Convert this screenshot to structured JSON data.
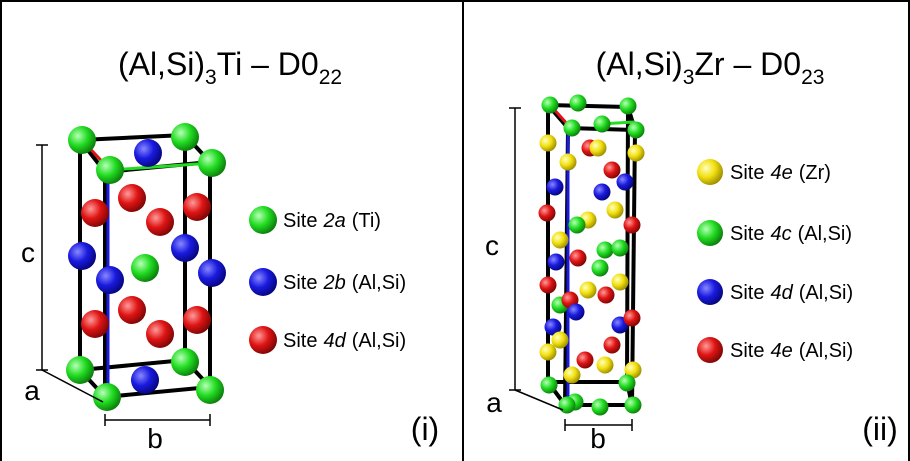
{
  "panels": [
    {
      "title": {
        "formula": "(Al,Si)",
        "formula_sub": "3",
        "element": "Ti – D0",
        "structure_sub": "22"
      },
      "axes": {
        "c": "c",
        "a": "a",
        "b": "b"
      },
      "legend": [
        {
          "site": "Site",
          "wyckoff": "2a",
          "occupant": "(Ti)",
          "color": "#22dd22"
        },
        {
          "site": "Site",
          "wyckoff": "2b",
          "occupant": "(Al,Si)",
          "color": "#1a1ae0"
        },
        {
          "site": "Site",
          "wyckoff": "4d",
          "occupant": "(Al,Si)",
          "color": "#e01414"
        }
      ],
      "label": "(i)"
    },
    {
      "title": {
        "formula": "(Al,Si)",
        "formula_sub": "3",
        "element": "Zr – D0",
        "structure_sub": "23"
      },
      "axes": {
        "c": "c",
        "a": "a",
        "b": "b"
      },
      "legend": [
        {
          "site": "Site",
          "wyckoff": "4e",
          "occupant": "(Zr)",
          "color": "#f2e010"
        },
        {
          "site": "Site",
          "wyckoff": "4c",
          "occupant": "(Al,Si)",
          "color": "#22dd22"
        },
        {
          "site": "Site",
          "wyckoff": "4d",
          "occupant": "(Al,Si)",
          "color": "#1a1ae0"
        },
        {
          "site": "Site",
          "wyckoff": "4e",
          "occupant": "(Al,Si)",
          "color": "#e01414"
        }
      ],
      "label": "(ii)"
    }
  ]
}
